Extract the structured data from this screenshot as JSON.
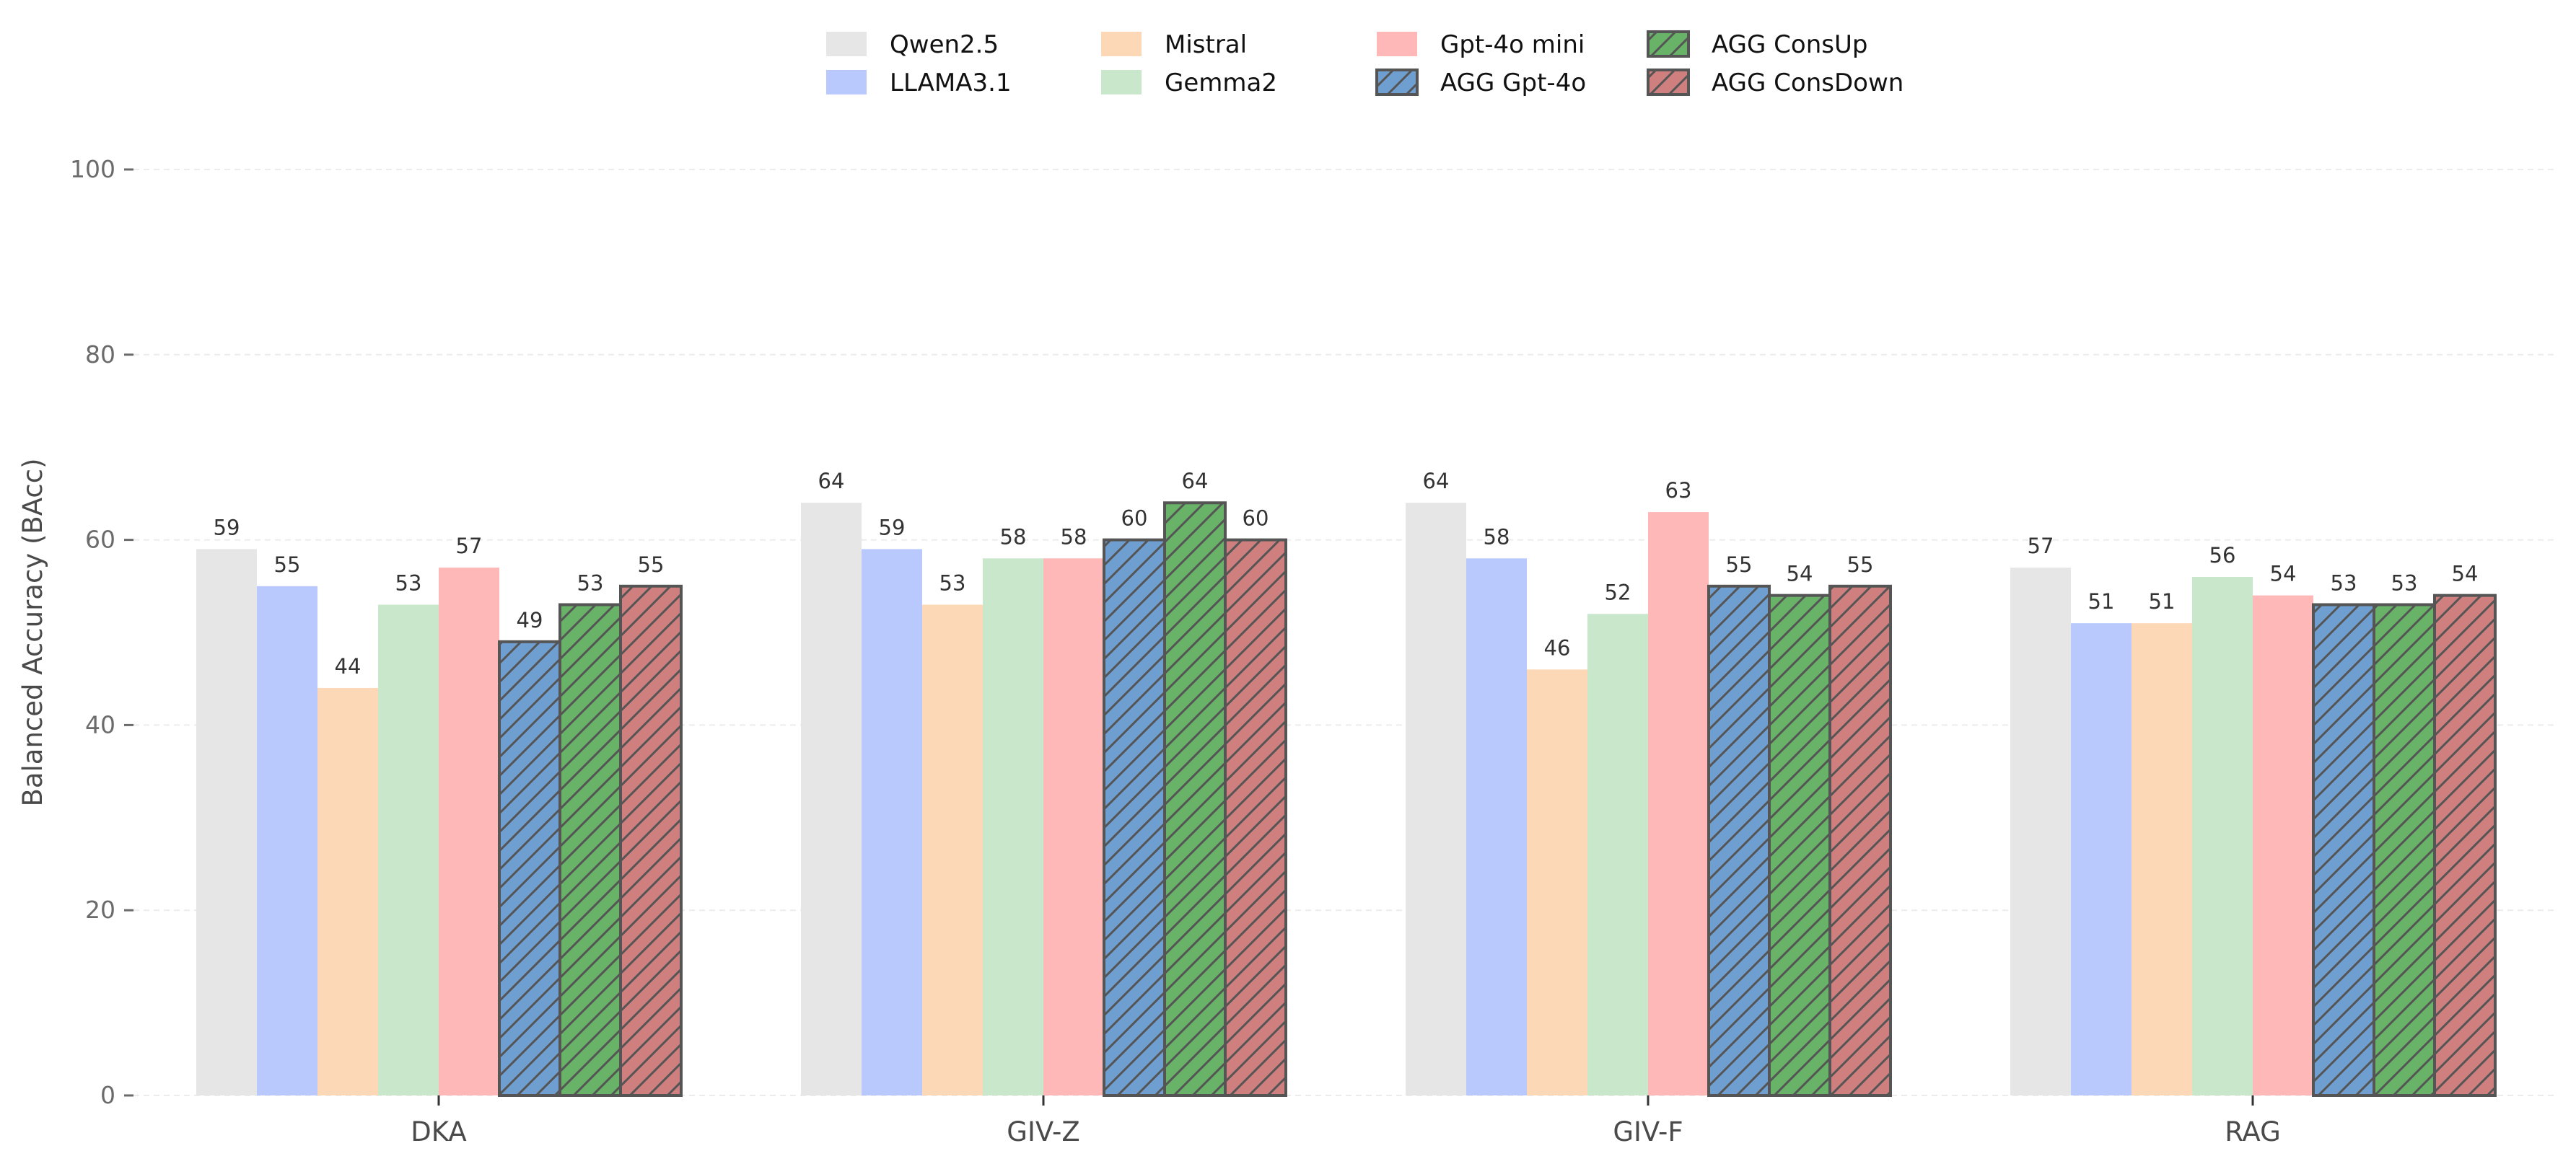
{
  "chart_data": {
    "type": "bar",
    "title": "",
    "xlabel": "",
    "ylabel": "Balanced Accuracy (BAcc)",
    "ylim": [
      0,
      100
    ],
    "yticks": [
      "0",
      "20",
      "40",
      "60",
      "80",
      "100"
    ],
    "grid": "horizontal dashed",
    "legend_placement": "top-center",
    "categories": [
      "DKA",
      "GIV-Z",
      "GIV-F",
      "RAG"
    ],
    "series": [
      {
        "name": "Qwen2.5",
        "color": "#e6e6e6",
        "hatch": false,
        "values": [
          59,
          64,
          64,
          57
        ]
      },
      {
        "name": "LLAMA3.1",
        "color": "#b9c9fd",
        "hatch": false,
        "values": [
          55,
          59,
          58,
          51
        ]
      },
      {
        "name": "Mistral",
        "color": "#fdd8b7",
        "hatch": false,
        "values": [
          44,
          53,
          46,
          51
        ]
      },
      {
        "name": "Gemma2",
        "color": "#c9e7ca",
        "hatch": false,
        "values": [
          53,
          58,
          52,
          56
        ]
      },
      {
        "name": "Gpt-4o mini",
        "color": "#ffb8b8",
        "hatch": false,
        "values": [
          57,
          58,
          63,
          54
        ]
      },
      {
        "name": "AGG Gpt-4o",
        "color": "#6f9fd0",
        "hatch": true,
        "values": [
          49,
          60,
          55,
          53
        ]
      },
      {
        "name": "AGG ConsUp",
        "color": "#68b368",
        "hatch": true,
        "values": [
          53,
          64,
          54,
          53
        ]
      },
      {
        "name": "AGG ConsDown",
        "color": "#d07f7f",
        "hatch": true,
        "values": [
          55,
          60,
          55,
          54
        ]
      }
    ]
  }
}
